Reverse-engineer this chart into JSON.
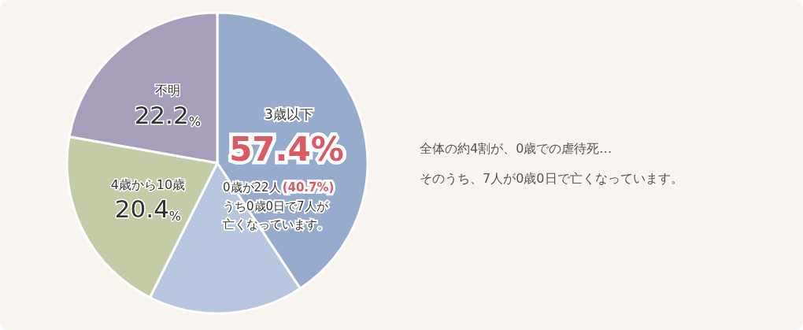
{
  "chart_data": {
    "type": "pie",
    "categories": [
      null,
      null,
      "4歳から10歳",
      "不明"
    ],
    "values": [
      40.7,
      16.7,
      20.4,
      22.2
    ],
    "colors": [
      "#97abcc",
      "#b6c7df",
      "#c3cca6",
      "#a79fb9"
    ],
    "value_labels": [
      null,
      null,
      "20.4%",
      "22.2%"
    ],
    "annotations": [
      "3歳以下",
      "57.4%",
      "0歳が22人",
      "(40.7%)",
      "うち0歳0日で7人が",
      "亡くなっています。",
      "全体の約4割が、0歳での虐待死…",
      "そのうち、7人が0歳0日で亡くなっています。"
    ]
  }
}
